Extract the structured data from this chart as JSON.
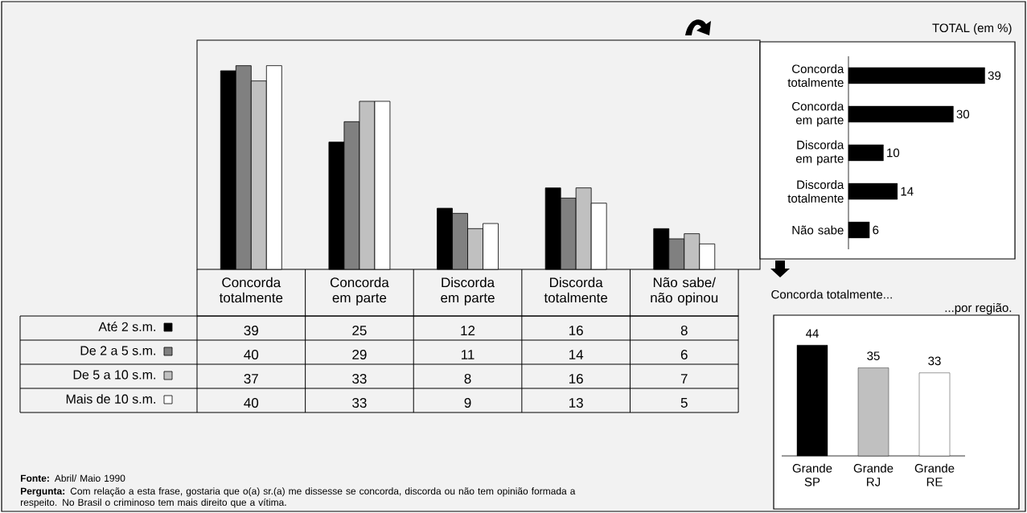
{
  "chart_data": [
    {
      "type": "bar",
      "categories": [
        "Concorda totalmente",
        "Concorda em parte",
        "Discorda em parte",
        "Discorda totalmente",
        "Não sabe/ não opinou"
      ],
      "series": [
        {
          "name": "Até 2 s.m.",
          "color": "#000000",
          "values": [
            39,
            25,
            12,
            16,
            8
          ]
        },
        {
          "name": "De 2 a 5 s.m.",
          "color": "#808080",
          "values": [
            40,
            29,
            11,
            14,
            6
          ]
        },
        {
          "name": "De 5 a 10 s.m.",
          "color": "#c0c0c0",
          "values": [
            37,
            33,
            8,
            16,
            7
          ]
        },
        {
          "name": "Mais de 10 s.m.",
          "color": "#ffffff",
          "values": [
            40,
            33,
            9,
            13,
            5
          ]
        }
      ],
      "ylim": [
        0,
        45
      ],
      "tick_labels": "x",
      "data_labels": true,
      "legend": "bottom left",
      "annotations": [
        "**Fonte:** Abril/ Maio 1990",
        "**Pergunta:** Com relação a esta frase, gostaria que o(a) sr.(a) me dissesse se concorda, discorda ou não tem opinião formada a respeito. No Brasil o criminoso tem mais direito que a vítima."
      ]
    },
    {
      "type": "bar",
      "orientation": "horizontal",
      "title": "TOTAL (em %)",
      "categories": [
        "Concorda totalmente",
        "Concorda em parte",
        "Discorda em parte",
        "Discorda totalmente",
        "Não sabe"
      ],
      "values": [
        39,
        30,
        10,
        14,
        6
      ],
      "color": "#000000",
      "tick_labels": "y",
      "data_labels": true
    },
    {
      "type": "bar",
      "title": "Concorda totalmente...",
      "subtitle": "...por região.",
      "categories": [
        "Grande SP",
        "Grande RJ",
        "Grande RE"
      ],
      "values": [
        44,
        35,
        33
      ],
      "colors": [
        "#000000",
        "#c0c0c0",
        "#ffffff"
      ],
      "tick_labels": "x",
      "data_labels": true
    }
  ]
}
